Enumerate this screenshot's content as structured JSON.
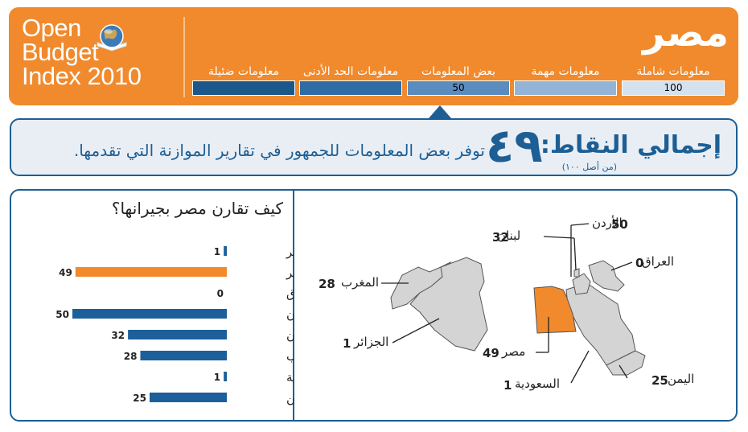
{
  "logo": {
    "line1": "Open",
    "line2": "Budget",
    "line3": "Index",
    "year": "2010"
  },
  "country_title": "مصر",
  "levels": [
    {
      "label": "معلومات شاملة",
      "value": "100",
      "color": "#d4e1ef"
    },
    {
      "label": "معلومات مهمة",
      "value": "",
      "color": "#93b4d6"
    },
    {
      "label": "بعض المعلومات",
      "value": "50",
      "color": "#5a8cc0"
    },
    {
      "label": "معلومات الحد الأدنى",
      "value": "",
      "color": "#2f6ba4"
    },
    {
      "label": "معلومات ضئيلة",
      "value": "",
      "color": "#1c578c"
    }
  ],
  "score": {
    "title": "إجمالي النقاط:",
    "sub": "(من أصل ١٠٠)",
    "number": "٤٩",
    "desc": "توفر بعض المعلومات للجمهور في تقارير الموازنة التي تقدمها."
  },
  "chart_title": "كيف تقارن مصر بجيرانها؟",
  "chart_data": {
    "type": "bar",
    "orientation": "horizontal",
    "title": "كيف تقارن مصر بجيرانها؟",
    "categories": [
      "الجزائر",
      "مصر",
      "العراق",
      "الأردن",
      "لبنان",
      "المغرب",
      "السعودية",
      "اليمن"
    ],
    "values": [
      1,
      49,
      0,
      50,
      32,
      28,
      1,
      25
    ],
    "xlim": [
      0,
      50
    ],
    "highlight": "مصر",
    "colors": {
      "default": "#1c5f9a",
      "highlight": "#f08a2d"
    }
  },
  "map_labels": [
    {
      "name": "الأردن",
      "value": "50"
    },
    {
      "name": "لبنان",
      "value": "32"
    },
    {
      "name": "العراق",
      "value": "0"
    },
    {
      "name": "المغرب",
      "value": "28"
    },
    {
      "name": "الجزائر",
      "value": "1"
    },
    {
      "name": "مصر",
      "value": "49"
    },
    {
      "name": "اليمن",
      "value": "25"
    },
    {
      "name": "السعودية",
      "value": "1"
    }
  ]
}
